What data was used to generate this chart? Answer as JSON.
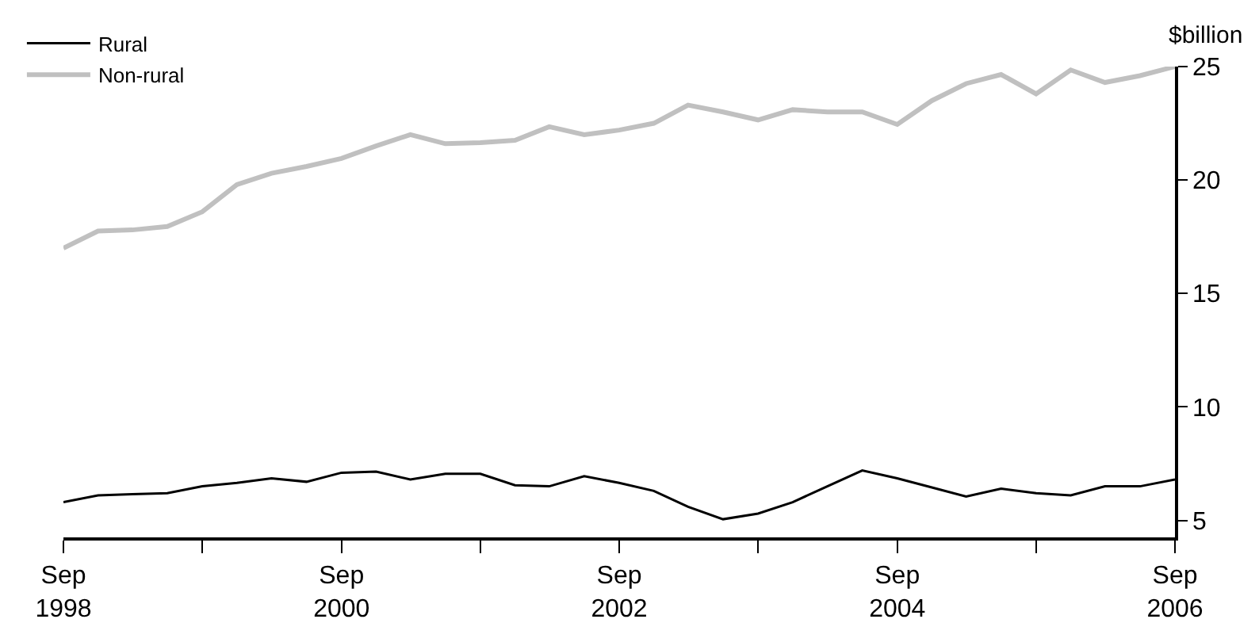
{
  "chart_data": {
    "type": "line",
    "ylabel": "$billion",
    "x": [
      "1998-09",
      "1998-12",
      "1999-03",
      "1999-06",
      "1999-09",
      "1999-12",
      "2000-03",
      "2000-06",
      "2000-09",
      "2000-12",
      "2001-03",
      "2001-06",
      "2001-09",
      "2001-12",
      "2002-03",
      "2002-06",
      "2002-09",
      "2002-12",
      "2003-03",
      "2003-06",
      "2003-09",
      "2003-12",
      "2004-03",
      "2004-06",
      "2004-09",
      "2004-12",
      "2005-03",
      "2005-06",
      "2005-09",
      "2005-12",
      "2006-03",
      "2006-06",
      "2006-09"
    ],
    "series": [
      {
        "name": "Rural",
        "color": "#000000",
        "values": [
          5.8,
          6.1,
          6.15,
          6.2,
          6.5,
          6.65,
          6.85,
          6.7,
          7.1,
          7.15,
          6.8,
          7.05,
          7.05,
          6.55,
          6.5,
          6.95,
          6.65,
          6.3,
          5.6,
          5.05,
          5.3,
          5.8,
          6.5,
          7.2,
          6.85,
          6.45,
          6.05,
          6.4,
          6.2,
          6.1,
          6.5,
          6.5,
          6.8
        ]
      },
      {
        "name": "Non-rural",
        "color": "#c0c0c0",
        "values": [
          17.0,
          17.75,
          17.8,
          17.95,
          18.6,
          19.8,
          20.3,
          20.6,
          20.95,
          21.5,
          22.0,
          21.6,
          21.65,
          21.75,
          22.35,
          22.0,
          22.2,
          22.5,
          23.3,
          23.0,
          22.65,
          23.1,
          23.0,
          23.0,
          22.45,
          23.5,
          24.25,
          24.65,
          23.8,
          24.85,
          24.3,
          24.6,
          25.0
        ]
      }
    ],
    "xlim": [
      "1998-09",
      "2006-09"
    ],
    "xticks": [
      {
        "value": "1998-09",
        "label": "Sep\n1998"
      },
      {
        "value": "1999-09",
        "label": null
      },
      {
        "value": "2000-09",
        "label": "Sep\n2000"
      },
      {
        "value": "2001-09",
        "label": null
      },
      {
        "value": "2002-09",
        "label": "Sep\n2002"
      },
      {
        "value": "2003-09",
        "label": null
      },
      {
        "value": "2004-09",
        "label": "Sep\n2004"
      },
      {
        "value": "2005-09",
        "label": null
      },
      {
        "value": "2006-09",
        "label": "Sep\n2006"
      }
    ],
    "ylim": [
      4.25,
      25
    ],
    "yticks": [
      5,
      10,
      15,
      20,
      25
    ],
    "legend": "top left",
    "marker": "none",
    "line_style": "solid"
  }
}
